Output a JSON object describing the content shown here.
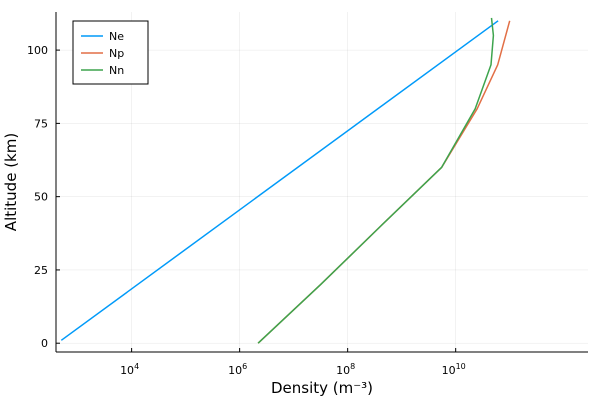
{
  "chart_data": {
    "type": "line",
    "title": "",
    "xlabel": "Density (m⁻³)",
    "ylabel": "Altitude (km)",
    "xscale": "log",
    "xlim_log10": [
      2.6,
      12.45
    ],
    "ylim": [
      -3,
      113
    ],
    "grid": true,
    "legend": "top-left",
    "x_ticks": [
      {
        "value": 10000,
        "base": "10",
        "exp": "4"
      },
      {
        "value": 1000000,
        "base": "10",
        "exp": "6"
      },
      {
        "value": 100000000,
        "base": "10",
        "exp": "8"
      },
      {
        "value": 10000000000,
        "base": "10",
        "exp": "10"
      }
    ],
    "y_ticks": [
      0,
      25,
      50,
      75,
      100
    ],
    "series": [
      {
        "name": "Ne",
        "color": "#009af9",
        "x": [
          500,
          61000000000.0
        ],
        "y": [
          1,
          110
        ]
      },
      {
        "name": "Np",
        "color": "#e26f46",
        "x": [
          2200000.0,
          31600000.0,
          410000000.0,
          5500000000.0,
          25000000000.0,
          60000000000.0,
          100000000000.0
        ],
        "y": [
          0,
          20,
          40,
          60,
          80,
          95,
          110
        ]
      },
      {
        "name": "Nn",
        "color": "#3da44d",
        "x": [
          2200000.0,
          31600000.0,
          410000000.0,
          5500000000.0,
          23000000000.0,
          45000000000.0,
          50000000000.0,
          46000000000.0
        ],
        "y": [
          0,
          20,
          40,
          60,
          80,
          95,
          105,
          111
        ]
      }
    ]
  }
}
